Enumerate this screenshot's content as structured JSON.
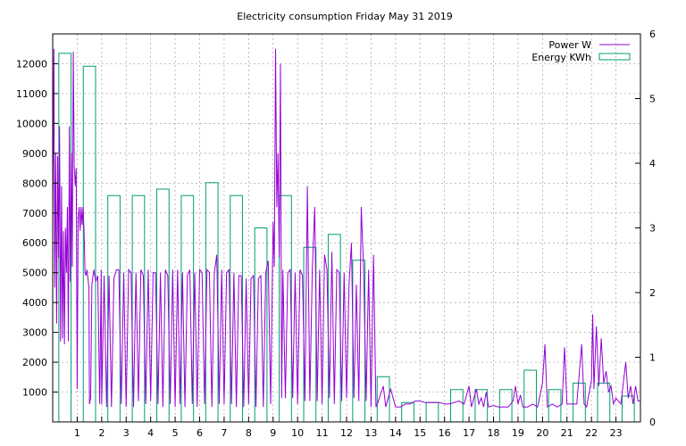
{
  "chart_data": {
    "type": "line",
    "title": "Electricity consumption Friday May 31 2019",
    "xlabel": "",
    "ylabel": "",
    "y2label": "",
    "xlim": [
      0,
      24
    ],
    "ylim": [
      0,
      13000
    ],
    "y2lim": [
      0,
      6
    ],
    "x_ticks": [
      1,
      2,
      3,
      4,
      5,
      6,
      7,
      8,
      9,
      10,
      11,
      12,
      13,
      14,
      15,
      16,
      17,
      18,
      19,
      20,
      21,
      22,
      23
    ],
    "y_ticks": [
      1000,
      2000,
      3000,
      4000,
      5000,
      6000,
      7000,
      8000,
      9000,
      10000,
      11000,
      12000
    ],
    "y2_ticks": [
      0,
      1,
      2,
      3,
      4,
      5,
      6
    ],
    "grid": true,
    "legend_position": "top-right",
    "colors": {
      "power": "#9400d3",
      "energy": "#009e73"
    },
    "series": [
      {
        "name": "Power W",
        "axis": "left",
        "style": "line",
        "points": [
          [
            0.0,
            7200
          ],
          [
            0.05,
            12500
          ],
          [
            0.08,
            4500
          ],
          [
            0.12,
            9000
          ],
          [
            0.16,
            3300
          ],
          [
            0.2,
            8900
          ],
          [
            0.24,
            5500
          ],
          [
            0.28,
            9900
          ],
          [
            0.32,
            2700
          ],
          [
            0.36,
            7900
          ],
          [
            0.4,
            2800
          ],
          [
            0.44,
            6400
          ],
          [
            0.48,
            2600
          ],
          [
            0.52,
            6500
          ],
          [
            0.56,
            5000
          ],
          [
            0.6,
            7200
          ],
          [
            0.64,
            2700
          ],
          [
            0.68,
            9900
          ],
          [
            0.72,
            4700
          ],
          [
            0.76,
            9000
          ],
          [
            0.8,
            5200
          ],
          [
            0.84,
            12400
          ],
          [
            0.88,
            8600
          ],
          [
            0.92,
            7900
          ],
          [
            0.96,
            8500
          ],
          [
            1.0,
            1100
          ],
          [
            1.04,
            6800
          ],
          [
            1.08,
            7200
          ],
          [
            1.12,
            6400
          ],
          [
            1.16,
            7200
          ],
          [
            1.2,
            6600
          ],
          [
            1.24,
            7200
          ],
          [
            1.28,
            6400
          ],
          [
            1.32,
            5000
          ],
          [
            1.36,
            4900
          ],
          [
            1.4,
            5100
          ],
          [
            1.44,
            4800
          ],
          [
            1.48,
            4500
          ],
          [
            1.5,
            600
          ],
          [
            1.55,
            800
          ],
          [
            1.6,
            4600
          ],
          [
            1.68,
            5100
          ],
          [
            1.76,
            4700
          ],
          [
            1.84,
            4900
          ],
          [
            1.92,
            600
          ],
          [
            1.98,
            5100
          ],
          [
            2.0,
            600
          ],
          [
            2.1,
            4900
          ],
          [
            2.2,
            500
          ],
          [
            2.3,
            4900
          ],
          [
            2.4,
            500
          ],
          [
            2.5,
            4800
          ],
          [
            2.6,
            5100
          ],
          [
            2.7,
            5100
          ],
          [
            2.8,
            600
          ],
          [
            2.9,
            5000
          ],
          [
            3.0,
            500
          ],
          [
            3.1,
            5100
          ],
          [
            3.2,
            5000
          ],
          [
            3.3,
            500
          ],
          [
            3.4,
            5000
          ],
          [
            3.5,
            700
          ],
          [
            3.6,
            5100
          ],
          [
            3.7,
            4900
          ],
          [
            3.8,
            600
          ],
          [
            3.9,
            5100
          ],
          [
            4.0,
            700
          ],
          [
            4.1,
            5000
          ],
          [
            4.2,
            5000
          ],
          [
            4.3,
            600
          ],
          [
            4.4,
            5000
          ],
          [
            4.5,
            500
          ],
          [
            4.6,
            5100
          ],
          [
            4.7,
            4900
          ],
          [
            4.8,
            600
          ],
          [
            4.9,
            5100
          ],
          [
            5.0,
            500
          ],
          [
            5.1,
            5100
          ],
          [
            5.2,
            600
          ],
          [
            5.3,
            5000
          ],
          [
            5.4,
            500
          ],
          [
            5.5,
            4900
          ],
          [
            5.6,
            5100
          ],
          [
            5.7,
            600
          ],
          [
            5.8,
            5000
          ],
          [
            5.9,
            500
          ],
          [
            6.0,
            5100
          ],
          [
            6.1,
            5000
          ],
          [
            6.2,
            600
          ],
          [
            6.3,
            5100
          ],
          [
            6.4,
            5000
          ],
          [
            6.5,
            500
          ],
          [
            6.6,
            5000
          ],
          [
            6.7,
            5600
          ],
          [
            6.8,
            600
          ],
          [
            6.9,
            5100
          ],
          [
            7.0,
            600
          ],
          [
            7.1,
            5000
          ],
          [
            7.2,
            5100
          ],
          [
            7.3,
            600
          ],
          [
            7.4,
            5000
          ],
          [
            7.5,
            500
          ],
          [
            7.6,
            4900
          ],
          [
            7.7,
            4900
          ],
          [
            7.8,
            500
          ],
          [
            7.9,
            4800
          ],
          [
            8.0,
            600
          ],
          [
            8.1,
            4800
          ],
          [
            8.2,
            4900
          ],
          [
            8.3,
            500
          ],
          [
            8.4,
            4800
          ],
          [
            8.5,
            4900
          ],
          [
            8.6,
            500
          ],
          [
            8.7,
            5000
          ],
          [
            8.8,
            5400
          ],
          [
            8.9,
            600
          ],
          [
            9.0,
            6700
          ],
          [
            9.05,
            5200
          ],
          [
            9.1,
            12500
          ],
          [
            9.15,
            7200
          ],
          [
            9.2,
            9000
          ],
          [
            9.25,
            5500
          ],
          [
            9.3,
            12000
          ],
          [
            9.35,
            800
          ],
          [
            9.4,
            5100
          ],
          [
            9.5,
            800
          ],
          [
            9.6,
            5000
          ],
          [
            9.7,
            5100
          ],
          [
            9.8,
            800
          ],
          [
            9.9,
            5000
          ],
          [
            10.0,
            600
          ],
          [
            10.1,
            5100
          ],
          [
            10.2,
            4900
          ],
          [
            10.3,
            700
          ],
          [
            10.4,
            7900
          ],
          [
            10.5,
            700
          ],
          [
            10.6,
            5100
          ],
          [
            10.7,
            7200
          ],
          [
            10.8,
            700
          ],
          [
            10.9,
            5100
          ],
          [
            11.0,
            600
          ],
          [
            11.1,
            5600
          ],
          [
            11.2,
            5100
          ],
          [
            11.3,
            800
          ],
          [
            11.4,
            5700
          ],
          [
            11.5,
            600
          ],
          [
            11.6,
            5100
          ],
          [
            11.7,
            5000
          ],
          [
            11.8,
            700
          ],
          [
            11.9,
            5000
          ],
          [
            12.0,
            800
          ],
          [
            12.1,
            4600
          ],
          [
            12.2,
            6000
          ],
          [
            12.3,
            800
          ],
          [
            12.4,
            4600
          ],
          [
            12.5,
            700
          ],
          [
            12.6,
            7200
          ],
          [
            12.7,
            5000
          ],
          [
            12.8,
            700
          ],
          [
            12.9,
            5100
          ],
          [
            13.0,
            500
          ],
          [
            13.1,
            5600
          ],
          [
            13.2,
            500
          ],
          [
            13.3,
            700
          ],
          [
            13.5,
            1200
          ],
          [
            13.6,
            500
          ],
          [
            13.8,
            1100
          ],
          [
            14.0,
            500
          ],
          [
            14.2,
            500
          ],
          [
            14.4,
            600
          ],
          [
            14.6,
            600
          ],
          [
            14.8,
            700
          ],
          [
            15.0,
            700
          ],
          [
            15.2,
            650
          ],
          [
            15.4,
            650
          ],
          [
            15.6,
            650
          ],
          [
            15.8,
            650
          ],
          [
            16.0,
            600
          ],
          [
            16.2,
            600
          ],
          [
            16.4,
            650
          ],
          [
            16.6,
            700
          ],
          [
            16.8,
            600
          ],
          [
            17.0,
            1200
          ],
          [
            17.1,
            500
          ],
          [
            17.2,
            800
          ],
          [
            17.3,
            1100
          ],
          [
            17.4,
            600
          ],
          [
            17.5,
            800
          ],
          [
            17.6,
            500
          ],
          [
            17.7,
            1000
          ],
          [
            17.8,
            500
          ],
          [
            18.0,
            550
          ],
          [
            18.2,
            500
          ],
          [
            18.4,
            500
          ],
          [
            18.6,
            500
          ],
          [
            18.8,
            700
          ],
          [
            18.9,
            1200
          ],
          [
            19.0,
            600
          ],
          [
            19.1,
            900
          ],
          [
            19.2,
            500
          ],
          [
            19.4,
            500
          ],
          [
            19.6,
            600
          ],
          [
            19.8,
            500
          ],
          [
            20.0,
            1300
          ],
          [
            20.1,
            2600
          ],
          [
            20.2,
            500
          ],
          [
            20.4,
            600
          ],
          [
            20.6,
            500
          ],
          [
            20.8,
            600
          ],
          [
            20.9,
            2500
          ],
          [
            21.0,
            600
          ],
          [
            21.2,
            600
          ],
          [
            21.4,
            600
          ],
          [
            21.6,
            2600
          ],
          [
            21.7,
            600
          ],
          [
            21.8,
            500
          ],
          [
            22.0,
            1400
          ],
          [
            22.05,
            3600
          ],
          [
            22.1,
            1100
          ],
          [
            22.2,
            3200
          ],
          [
            22.3,
            1200
          ],
          [
            22.4,
            2800
          ],
          [
            22.5,
            1300
          ],
          [
            22.6,
            1700
          ],
          [
            22.7,
            1000
          ],
          [
            22.8,
            1200
          ],
          [
            22.9,
            600
          ],
          [
            23.0,
            800
          ],
          [
            23.2,
            600
          ],
          [
            23.4,
            2000
          ],
          [
            23.5,
            800
          ],
          [
            23.6,
            1200
          ],
          [
            23.7,
            600
          ],
          [
            23.8,
            1200
          ],
          [
            23.9,
            700
          ],
          [
            24.0,
            700
          ]
        ]
      },
      {
        "name": "Energy KWh",
        "axis": "right",
        "style": "boxes",
        "hours": [
          0,
          1,
          2,
          3,
          4,
          5,
          6,
          7,
          8,
          9,
          10,
          11,
          12,
          13,
          14,
          15,
          16,
          17,
          18,
          19,
          20,
          21,
          22,
          23
        ],
        "values": [
          5.7,
          5.5,
          3.5,
          3.5,
          3.6,
          3.5,
          3.7,
          3.5,
          3.0,
          3.5,
          2.7,
          2.9,
          2.5,
          0.7,
          0.3,
          0.3,
          0.5,
          0.5,
          0.5,
          0.8,
          0.5,
          0.6,
          0.6,
          0.4
        ]
      }
    ]
  }
}
